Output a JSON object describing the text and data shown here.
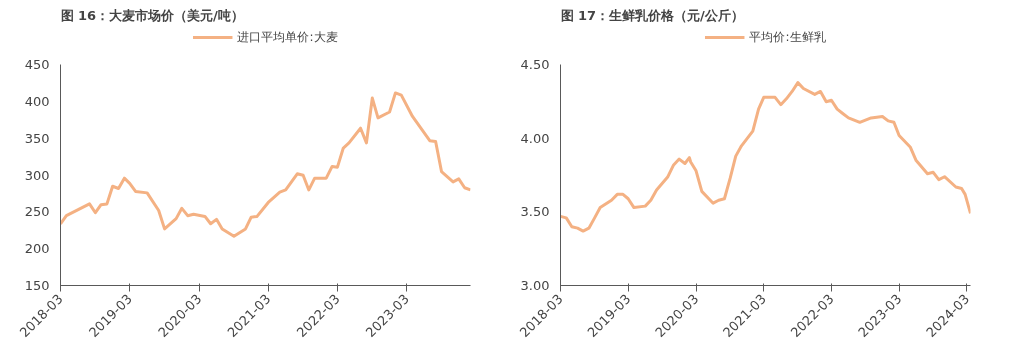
{
  "chart_data": [
    {
      "type": "line",
      "title": "图 16：大麦市场价（美元/吨）",
      "legend": "top",
      "grid": false,
      "xlim": [
        "2018-03",
        "2024-02"
      ],
      "xticks": [
        "2018-03",
        "2019-03",
        "2020-03",
        "2021-03",
        "2022-03",
        "2023-03"
      ],
      "ylim": [
        150,
        450
      ],
      "yticks": [
        150,
        200,
        250,
        300,
        350,
        400,
        450
      ],
      "series": [
        {
          "name": "进口平均单价:大麦",
          "color": "#f4b183",
          "x": [
            "2018-03",
            "2018-04",
            "2018-08",
            "2018-09",
            "2018-10",
            "2018-11",
            "2018-12",
            "2019-01",
            "2019-02",
            "2019-03",
            "2019-04",
            "2019-06",
            "2019-08",
            "2019-09",
            "2019-11",
            "2019-12",
            "2020-01",
            "2020-02",
            "2020-04",
            "2020-05",
            "2020-06",
            "2020-07",
            "2020-09",
            "2020-11",
            "2020-12",
            "2021-01",
            "2021-03",
            "2021-05",
            "2021-06",
            "2021-08",
            "2021-09",
            "2021-10",
            "2021-11",
            "2022-01",
            "2022-02",
            "2022-03",
            "2022-04",
            "2022-05",
            "2022-07",
            "2022-08",
            "2022-09",
            "2022-10",
            "2022-12",
            "2023-01",
            "2023-02",
            "2023-04",
            "2023-07",
            "2023-08",
            "2023-09",
            "2023-11",
            "2023-12",
            "2024-01",
            "2024-02"
          ],
          "values": [
            234,
            245,
            261,
            249,
            260,
            261,
            285,
            282,
            296,
            289,
            278,
            276,
            252,
            227,
            241,
            255,
            245,
            247,
            244,
            234,
            240,
            227,
            217,
            227,
            243,
            244,
            263,
            277,
            280,
            302,
            300,
            280,
            296,
            296,
            312,
            311,
            337,
            344,
            364,
            344,
            405,
            378,
            386,
            412,
            409,
            380,
            347,
            346,
            305,
            291,
            295,
            283,
            280
          ]
        }
      ]
    },
    {
      "type": "line",
      "title": "图 17：生鲜乳价格（元/公斤）",
      "legend": "top",
      "grid": false,
      "xlim": [
        "2018-03",
        "2024-03-20"
      ],
      "xticks": [
        "2018-03",
        "2019-03",
        "2020-03",
        "2021-03",
        "2022-03",
        "2023-03",
        "2024-03"
      ],
      "ylim": [
        3.0,
        4.5
      ],
      "yticks": [
        {
          "value": 3.0,
          "label": "3.00"
        },
        {
          "value": 3.5,
          "label": "3.50"
        },
        {
          "value": 4.0,
          "label": "4.00"
        },
        {
          "value": 4.5,
          "label": "4.50"
        }
      ],
      "series": [
        {
          "name": "平均价:生鲜乳",
          "color": "#f4b183",
          "x": [
            "2018-03",
            "2018-04",
            "2018-05",
            "2018-06",
            "2018-07",
            "2018-08",
            "2018-09",
            "2018-10",
            "2018-12",
            "2019-01",
            "2019-02",
            "2019-03",
            "2019-04",
            "2019-06",
            "2019-07",
            "2019-08",
            "2019-10",
            "2019-11",
            "2019-12",
            "2020-01",
            "2020-01-25",
            "2020-02",
            "2020-03",
            "2020-04",
            "2020-06",
            "2020-07",
            "2020-08",
            "2020-09",
            "2020-10",
            "2020-11",
            "2021-01",
            "2021-02",
            "2021-03",
            "2021-05",
            "2021-06",
            "2021-07",
            "2021-08",
            "2021-09",
            "2021-10",
            "2021-12",
            "2022-01",
            "2022-02",
            "2022-03",
            "2022-04",
            "2022-05",
            "2022-06",
            "2022-08",
            "2022-10",
            "2022-12",
            "2023-01",
            "2023-02",
            "2023-03",
            "2023-05",
            "2023-06",
            "2023-08",
            "2023-09",
            "2023-10",
            "2023-11",
            "2024-01",
            "2024-02",
            "2024-02-20",
            "2024-03-20"
          ],
          "values": [
            3.47,
            3.46,
            3.4,
            3.39,
            3.37,
            3.39,
            3.46,
            3.53,
            3.58,
            3.62,
            3.62,
            3.59,
            3.53,
            3.54,
            3.58,
            3.65,
            3.74,
            3.82,
            3.86,
            3.83,
            3.87,
            3.84,
            3.78,
            3.64,
            3.56,
            3.58,
            3.59,
            3.73,
            3.88,
            3.95,
            4.05,
            4.2,
            4.28,
            4.28,
            4.23,
            4.27,
            4.32,
            4.38,
            4.34,
            4.3,
            4.32,
            4.25,
            4.26,
            4.2,
            4.17,
            4.14,
            4.11,
            4.14,
            4.15,
            4.12,
            4.11,
            4.02,
            3.94,
            3.85,
            3.76,
            3.77,
            3.72,
            3.74,
            3.67,
            3.66,
            3.62,
            3.49
          ]
        }
      ]
    }
  ]
}
